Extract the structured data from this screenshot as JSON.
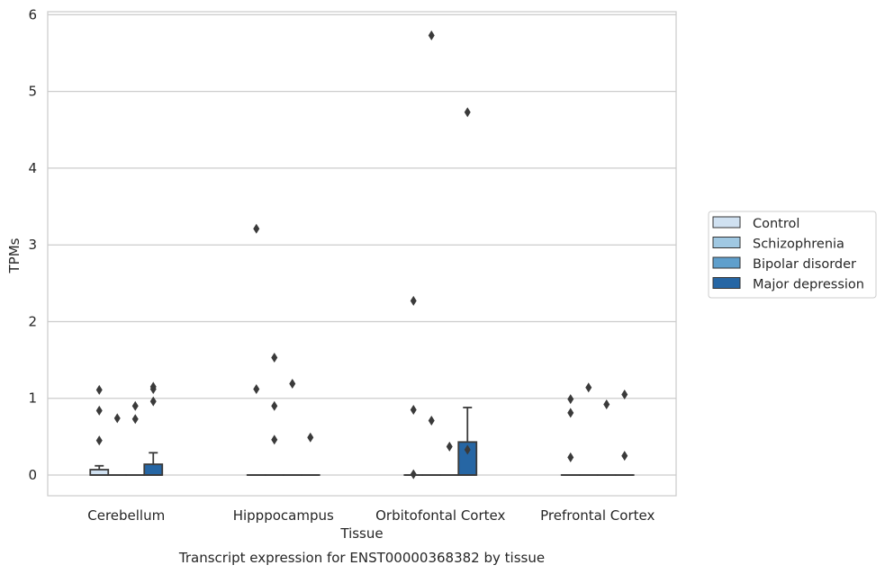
{
  "chart_data": {
    "type": "box",
    "title": "",
    "caption": "Transcript expression for ENST00000368382 by tissue",
    "xlabel": "Tissue",
    "ylabel": "TPMs",
    "ylim": [
      -0.27,
      6.04
    ],
    "yticks": [
      0,
      1,
      2,
      3,
      4,
      5,
      6
    ],
    "grid": "horizontal",
    "legend_placement": "right",
    "categories": [
      "Cerebellum",
      "Hipppocampus",
      "Orbitofontal Cortex",
      "Prefrontal Cortex"
    ],
    "series": [
      {
        "name": "Control",
        "color": "#d0e1f1",
        "boxes": [
          {
            "q1": 0,
            "median": 0,
            "q3": 0.07,
            "whisker_low": 0,
            "whisker_high": 0.12,
            "outliers": [
              0.45,
              0.84,
              1.11
            ]
          },
          {
            "q1": 0,
            "median": 0,
            "q3": 0,
            "whisker_low": 0,
            "whisker_high": 0,
            "outliers": [
              1.12,
              3.21
            ]
          },
          {
            "q1": 0,
            "median": 0,
            "q3": 0,
            "whisker_low": 0,
            "whisker_high": 0,
            "outliers": [
              0.01,
              0.85,
              2.27
            ]
          },
          {
            "q1": 0,
            "median": 0,
            "q3": 0,
            "whisker_low": 0,
            "whisker_high": 0,
            "outliers": [
              0.23,
              0.81,
              0.99
            ]
          }
        ]
      },
      {
        "name": "Schizophrenia",
        "color": "#a0c8e2",
        "boxes": [
          {
            "q1": 0,
            "median": 0,
            "q3": 0,
            "whisker_low": 0,
            "whisker_high": 0,
            "outliers": [
              0.74
            ]
          },
          {
            "q1": 0,
            "median": 0,
            "q3": 0,
            "whisker_low": 0,
            "whisker_high": 0,
            "outliers": [
              0.46,
              0.9,
              1.53
            ]
          },
          {
            "q1": 0,
            "median": 0,
            "q3": 0,
            "whisker_low": 0,
            "whisker_high": 0,
            "outliers": [
              0.71,
              5.73
            ]
          },
          {
            "q1": 0,
            "median": 0,
            "q3": 0,
            "whisker_low": 0,
            "whisker_high": 0,
            "outliers": [
              1.14
            ]
          }
        ]
      },
      {
        "name": "Bipolar disorder",
        "color": "#5f9fcc",
        "boxes": [
          {
            "q1": 0,
            "median": 0,
            "q3": 0,
            "whisker_low": 0,
            "whisker_high": 0,
            "outliers": [
              0.73,
              0.9
            ]
          },
          {
            "q1": 0,
            "median": 0,
            "q3": 0,
            "whisker_low": 0,
            "whisker_high": 0,
            "outliers": [
              1.19
            ]
          },
          {
            "q1": 0,
            "median": 0,
            "q3": 0,
            "whisker_low": 0,
            "whisker_high": 0,
            "outliers": [
              0.37
            ]
          },
          {
            "q1": 0,
            "median": 0,
            "q3": 0,
            "whisker_low": 0,
            "whisker_high": 0,
            "outliers": [
              0.92
            ]
          }
        ]
      },
      {
        "name": "Major depression",
        "color": "#2666a4",
        "boxes": [
          {
            "q1": 0,
            "median": 0,
            "q3": 0.14,
            "whisker_low": 0,
            "whisker_high": 0.29,
            "outliers": [
              0.96,
              1.12,
              1.15
            ]
          },
          {
            "q1": 0,
            "median": 0,
            "q3": 0,
            "whisker_low": 0,
            "whisker_high": 0,
            "outliers": [
              0.49
            ]
          },
          {
            "q1": 0,
            "median": 0,
            "q3": 0.43,
            "whisker_low": 0,
            "whisker_high": 0.88,
            "outliers": [
              0.33,
              4.73
            ]
          },
          {
            "q1": 0,
            "median": 0,
            "q3": 0,
            "whisker_low": 0,
            "whisker_high": 0,
            "outliers": [
              0.25,
              1.05
            ]
          }
        ]
      }
    ]
  }
}
